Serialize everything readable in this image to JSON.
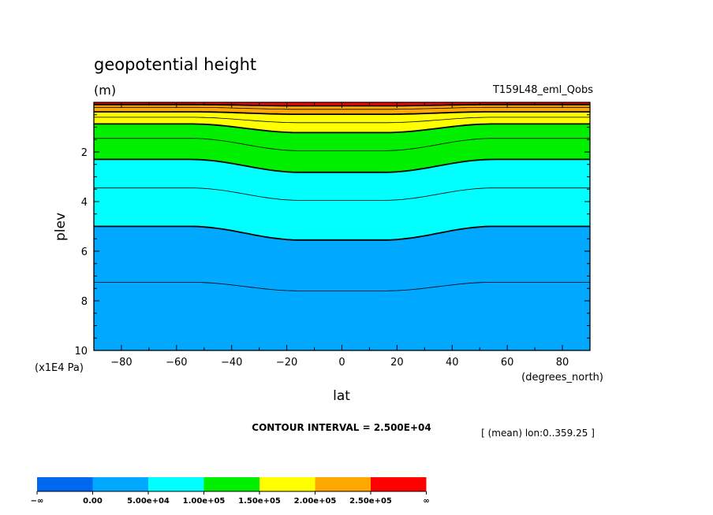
{
  "chart_data": {
    "type": "contour",
    "title": "geopotential height",
    "units": "(m)",
    "dataset": "T159L48_eml_Qobs",
    "xlabel": "lat",
    "x_units": "(degrees_north)",
    "ylabel": "plev",
    "y_units": "(x1E4 Pa)",
    "xlim": [
      -90,
      90
    ],
    "ylim": [
      10,
      0
    ],
    "x_ticks": [
      -80,
      -60,
      -40,
      -20,
      0,
      20,
      40,
      60,
      80
    ],
    "y_ticks": [
      2,
      4,
      6,
      8,
      10
    ],
    "x_tick_labels": [
      "−80",
      "−60",
      "−40",
      "−20",
      "0",
      "20",
      "40",
      "60",
      "80"
    ],
    "y_tick_labels": [
      "2",
      "4",
      "6",
      "8",
      "10"
    ],
    "contour_interval_text": "CONTOUR INTERVAL = 2.500E+04",
    "averaging_note": "[ (mean) lon:0..359.25 ]",
    "fill_levels": [
      {
        "value": 50000,
        "pole_plev": 5.0,
        "equator_plev": 5.55
      },
      {
        "value": 100000,
        "pole_plev": 2.3,
        "equator_plev": 2.82
      },
      {
        "value": 150000,
        "pole_plev": 0.87,
        "equator_plev": 1.22
      },
      {
        "value": 200000,
        "pole_plev": 0.38,
        "equator_plev": 0.48
      },
      {
        "value": 250000,
        "pole_plev": 0.09,
        "equator_plev": 0.14
      }
    ],
    "contour_lines": [
      {
        "value": 25000,
        "pole_plev": 7.25,
        "equator_plev": 7.6
      },
      {
        "value": 50000,
        "pole_plev": 5.0,
        "equator_plev": 5.55
      },
      {
        "value": 75000,
        "pole_plev": 3.45,
        "equator_plev": 3.95
      },
      {
        "value": 100000,
        "pole_plev": 2.3,
        "equator_plev": 2.82
      },
      {
        "value": 125000,
        "pole_plev": 1.45,
        "equator_plev": 1.95
      },
      {
        "value": 150000,
        "pole_plev": 0.87,
        "equator_plev": 1.22
      },
      {
        "value": 175000,
        "pole_plev": 0.6,
        "equator_plev": 0.82
      },
      {
        "value": 200000,
        "pole_plev": 0.38,
        "equator_plev": 0.48
      },
      {
        "value": 225000,
        "pole_plev": 0.2,
        "equator_plev": 0.28
      },
      {
        "value": 250000,
        "pole_plev": 0.09,
        "equator_plev": 0.14
      }
    ],
    "colorbar": {
      "colors": [
        "#0068f0",
        "#00a8ff",
        "#00ffff",
        "#00f000",
        "#ffff00",
        "#ffa800",
        "#ff0000"
      ],
      "labels": [
        "−∞",
        "0.00",
        "5.00e+04",
        "1.00e+05",
        "1.50e+05",
        "2.00e+05",
        "2.50e+05",
        "∞"
      ]
    },
    "grid": false,
    "legend": "bottom-left"
  }
}
